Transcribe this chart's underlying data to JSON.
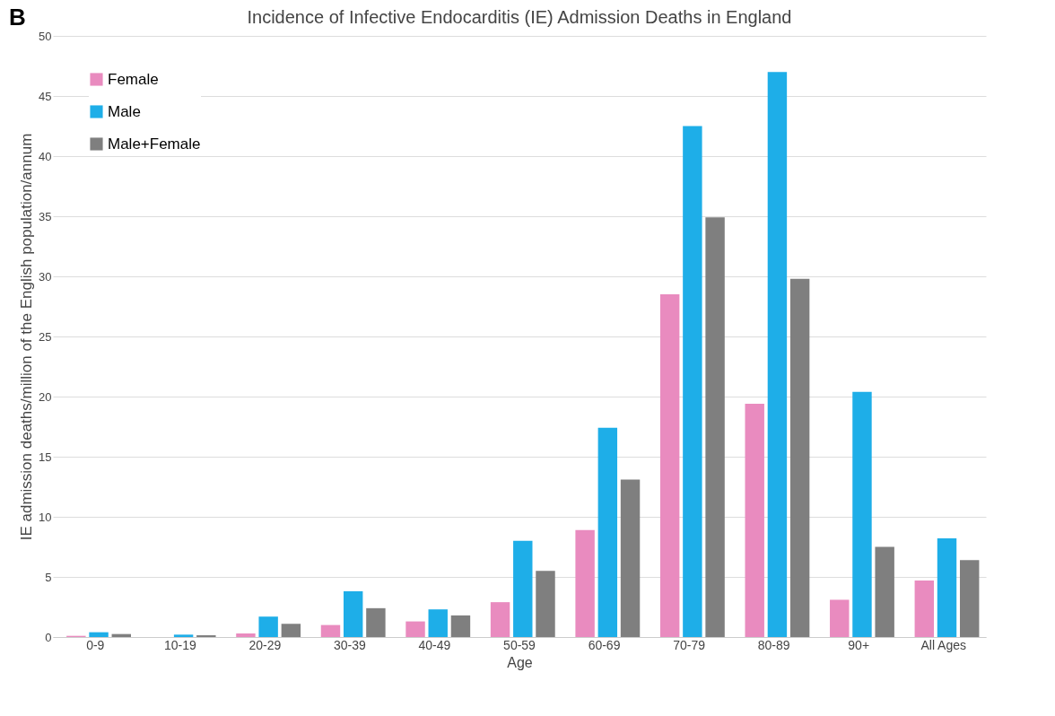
{
  "chart_data": {
    "type": "bar",
    "title": "Incidence of Infective Endocarditis (IE) Admission Deaths in England",
    "xlabel": "Age",
    "ylabel": "IE admission deaths/million of the English population/annum",
    "annotations": [
      "B"
    ],
    "categories": [
      "0-9",
      "10-19",
      "20-29",
      "30-39",
      "40-49",
      "50-59",
      "60-69",
      "70-79",
      "80-89",
      "90+",
      "All Ages"
    ],
    "series": [
      {
        "name": "Female",
        "color": "#e98bbf",
        "values": [
          0.1,
          0,
          0.3,
          1.0,
          1.3,
          2.9,
          8.9,
          28.5,
          19.4,
          3.1,
          4.7
        ]
      },
      {
        "name": "Male",
        "color": "#1eaee8",
        "values": [
          0.4,
          0.2,
          1.7,
          3.8,
          2.3,
          8.0,
          17.4,
          42.5,
          47.0,
          20.4,
          8.2
        ]
      },
      {
        "name": "Male+Female",
        "color": "#7f7f7f",
        "values": [
          0.25,
          0.15,
          1.1,
          2.4,
          1.8,
          5.5,
          13.1,
          34.9,
          29.8,
          7.5,
          6.4
        ]
      }
    ],
    "ylim": [
      0,
      50
    ],
    "yticks": [
      0,
      5,
      10,
      15,
      20,
      25,
      30,
      35,
      40,
      45,
      50
    ],
    "grid": "y",
    "legend": "top left"
  }
}
